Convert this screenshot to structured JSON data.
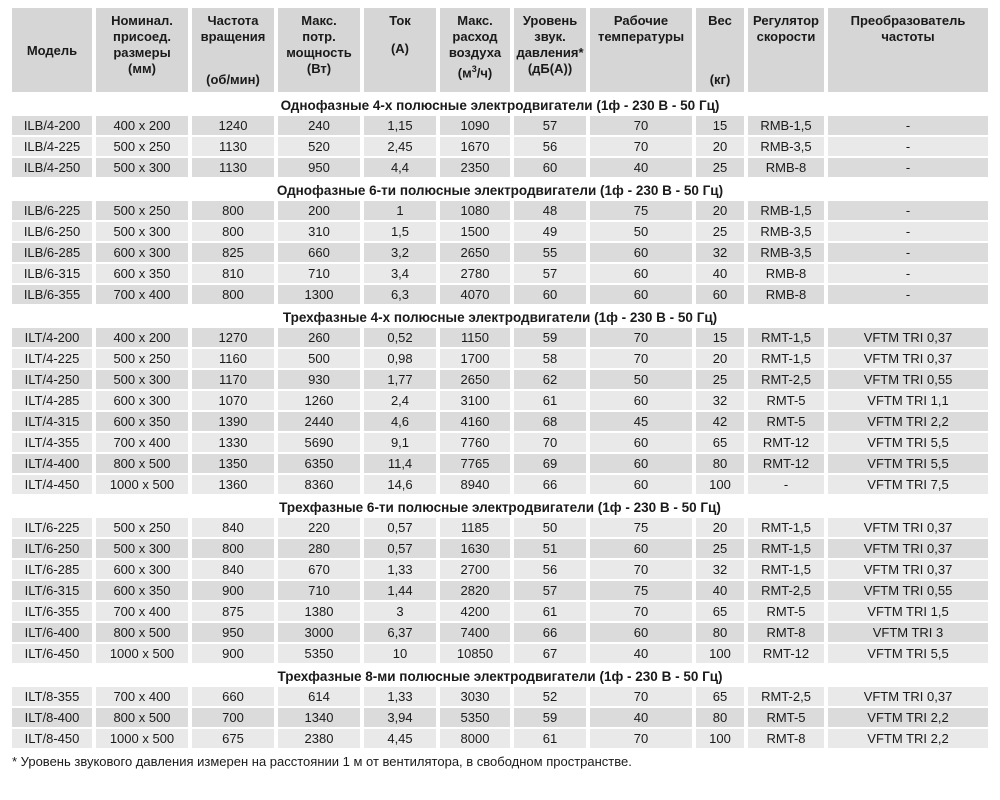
{
  "colors": {
    "background": "#ffffff",
    "header_bg": "#d6d6d6",
    "row_dark": "#dbdbdb",
    "row_light": "#e9e9e9",
    "section_bg": "#ffffff",
    "text": "#1a1a1a"
  },
  "table": {
    "columns": [
      {
        "id": "model",
        "lines": [
          "Модель"
        ],
        "valign": "center"
      },
      {
        "id": "dimensions",
        "lines": [
          "Номинал.",
          "присоед.",
          "размеры"
        ],
        "unit": "(мм)",
        "unit_anchor": "near"
      },
      {
        "id": "speed",
        "lines": [
          "Частота",
          "вращения"
        ],
        "unit": "(об/мин)",
        "unit_anchor": "bottom"
      },
      {
        "id": "power",
        "lines": [
          "Макс.",
          "потр.",
          "мощность"
        ],
        "unit": "(Вт)",
        "unit_anchor": "near"
      },
      {
        "id": "current",
        "lines": [
          "Ток"
        ],
        "unit": "(А)",
        "unit_anchor": "mid"
      },
      {
        "id": "airflow",
        "lines": [
          "Макс.",
          "расход",
          "воздуха"
        ],
        "unit_parts": {
          "pre": "(м",
          "sup": "3",
          "post": "/ч)"
        },
        "unit_anchor": "near"
      },
      {
        "id": "sound",
        "lines": [
          "Уровень",
          "звук.",
          "давления*"
        ],
        "unit": "(дБ(А))",
        "unit_anchor": "near"
      },
      {
        "id": "temperature",
        "lines": [
          "Рабочие",
          "температуры"
        ]
      },
      {
        "id": "weight",
        "lines": [
          "Вес"
        ],
        "unit": "(кг)",
        "unit_anchor": "bottom"
      },
      {
        "id": "regulator",
        "lines": [
          "Регулятор",
          "скорости"
        ]
      },
      {
        "id": "converter",
        "lines": [
          "Преобразователь",
          "частоты"
        ]
      }
    ],
    "sections": [
      {
        "title": "Однофазные 4-х полюсные электродвигатели (1ф - 230 В - 50 Гц)",
        "rows": [
          [
            "ILB/4-200",
            "400 x 200",
            "1240",
            "240",
            "1,15",
            "1090",
            "57",
            "70",
            "15",
            "RMB-1,5",
            "-"
          ],
          [
            "ILB/4-225",
            "500 x 250",
            "1130",
            "520",
            "2,45",
            "1670",
            "56",
            "70",
            "20",
            "RMB-3,5",
            "-"
          ],
          [
            "ILB/4-250",
            "500 x 300",
            "1130",
            "950",
            "4,4",
            "2350",
            "60",
            "40",
            "25",
            "RMB-8",
            "-"
          ]
        ]
      },
      {
        "title": "Однофазные 6-ти полюсные электродвигатели (1ф - 230 В - 50 Гц)",
        "rows": [
          [
            "ILB/6-225",
            "500 x 250",
            "800",
            "200",
            "1",
            "1080",
            "48",
            "75",
            "20",
            "RMB-1,5",
            "-"
          ],
          [
            "ILB/6-250",
            "500 x 300",
            "800",
            "310",
            "1,5",
            "1500",
            "49",
            "50",
            "25",
            "RMB-3,5",
            "-"
          ],
          [
            "ILB/6-285",
            "600 x 300",
            "825",
            "660",
            "3,2",
            "2650",
            "55",
            "60",
            "32",
            "RMB-3,5",
            "-"
          ],
          [
            "ILB/6-315",
            "600 x 350",
            "810",
            "710",
            "3,4",
            "2780",
            "57",
            "60",
            "40",
            "RMB-8",
            "-"
          ],
          [
            "ILB/6-355",
            "700 x 400",
            "800",
            "1300",
            "6,3",
            "4070",
            "60",
            "60",
            "60",
            "RMB-8",
            "-"
          ]
        ]
      },
      {
        "title": "Трехфазные 4-х полюсные электродвигатели (1ф - 230 В - 50 Гц)",
        "rows": [
          [
            "ILT/4-200",
            "400 x 200",
            "1270",
            "260",
            "0,52",
            "1150",
            "59",
            "70",
            "15",
            "RMT-1,5",
            "VFTM TRI 0,37"
          ],
          [
            "ILT/4-225",
            "500 x 250",
            "1160",
            "500",
            "0,98",
            "1700",
            "58",
            "70",
            "20",
            "RMT-1,5",
            "VFTM TRI 0,37"
          ],
          [
            "ILT/4-250",
            "500 x 300",
            "1170",
            "930",
            "1,77",
            "2650",
            "62",
            "50",
            "25",
            "RMT-2,5",
            "VFTM TRI 0,55"
          ],
          [
            "ILT/4-285",
            "600 x 300",
            "1070",
            "1260",
            "2,4",
            "3100",
            "61",
            "60",
            "32",
            "RMT-5",
            "VFTM TRI 1,1"
          ],
          [
            "ILT/4-315",
            "600 x 350",
            "1390",
            "2440",
            "4,6",
            "4160",
            "68",
            "45",
            "42",
            "RMT-5",
            "VFTM TRI 2,2"
          ],
          [
            "ILT/4-355",
            "700 x 400",
            "1330",
            "5690",
            "9,1",
            "7760",
            "70",
            "60",
            "65",
            "RMT-12",
            "VFTM TRI 5,5"
          ],
          [
            "ILT/4-400",
            "800 x 500",
            "1350",
            "6350",
            "11,4",
            "7765",
            "69",
            "60",
            "80",
            "RMT-12",
            "VFTM TRI 5,5"
          ],
          [
            "ILT/4-450",
            "1000 x 500",
            "1360",
            "8360",
            "14,6",
            "8940",
            "66",
            "60",
            "100",
            "-",
            "VFTM TRI 7,5"
          ]
        ]
      },
      {
        "title": "Трехфазные 6-ти полюсные электродвигатели (1ф - 230 В - 50 Гц)",
        "rows": [
          [
            "ILT/6-225",
            "500 x 250",
            "840",
            "220",
            "0,57",
            "1185",
            "50",
            "75",
            "20",
            "RMT-1,5",
            "VFTM TRI 0,37"
          ],
          [
            "ILT/6-250",
            "500 x 300",
            "800",
            "280",
            "0,57",
            "1630",
            "51",
            "60",
            "25",
            "RMT-1,5",
            "VFTM TRI 0,37"
          ],
          [
            "ILT/6-285",
            "600 x 300",
            "840",
            "670",
            "1,33",
            "2700",
            "56",
            "70",
            "32",
            "RMT-1,5",
            "VFTM TRI 0,37"
          ],
          [
            "ILT/6-315",
            "600 x 350",
            "900",
            "710",
            "1,44",
            "2820",
            "57",
            "75",
            "40",
            "RMT-2,5",
            "VFTM TRI 0,55"
          ],
          [
            "ILT/6-355",
            "700 x 400",
            "875",
            "1380",
            "3",
            "4200",
            "61",
            "70",
            "65",
            "RMT-5",
            "VFTM TRI 1,5"
          ],
          [
            "ILT/6-400",
            "800 x 500",
            "950",
            "3000",
            "6,37",
            "7400",
            "66",
            "60",
            "80",
            "RMT-8",
            "VFTM TRI 3"
          ],
          [
            "ILT/6-450",
            "1000 x 500",
            "900",
            "5350",
            "10",
            "10850",
            "67",
            "40",
            "100",
            "RMT-12",
            "VFTM TRI 5,5"
          ]
        ]
      },
      {
        "title": "Трехфазные 8-ми полюсные электродвигатели (1ф - 230 В - 50 Гц)",
        "rows": [
          [
            "ILT/8-355",
            "700 x 400",
            "660",
            "614",
            "1,33",
            "3030",
            "52",
            "70",
            "65",
            "RMT-2,5",
            "VFTM TRI 0,37"
          ],
          [
            "ILT/8-400",
            "800 x 500",
            "700",
            "1340",
            "3,94",
            "5350",
            "59",
            "40",
            "80",
            "RMT-5",
            "VFTM TRI 2,2"
          ],
          [
            "ILT/8-450",
            "1000 x 500",
            "675",
            "2380",
            "4,45",
            "8000",
            "61",
            "70",
            "100",
            "RMT-8",
            "VFTM TRI 2,2"
          ]
        ]
      }
    ],
    "footnote": "* Уровень звукового давления измерен на расстоянии 1 м от вентилятора, в свободном пространстве."
  }
}
